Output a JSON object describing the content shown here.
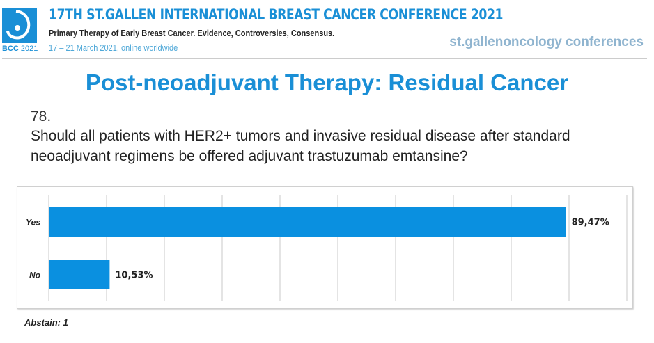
{
  "header": {
    "logo_text": "BCC",
    "logo_year": "2021",
    "conference_title": "17TH ST.GALLEN INTERNATIONAL BREAST CANCER CONFERENCE 2021",
    "subtitle": "Primary Therapy of Early Breast Cancer. Evidence, Controversies, Consensus.",
    "dates": "17 – 21 March 2021, online worldwide",
    "brand_logo": "st.gallenoncology conferences"
  },
  "slide": {
    "title": "Post-neoadjuvant Therapy: Residual Cancer",
    "question_number": "78.",
    "question": "Should all patients with HER2+ tumors and invasive residual disease after standard neoadjuvant regimens be offered adjuvant trastuzumab emtansine?",
    "abstain": "Abstain: 1"
  },
  "colors": {
    "accent": "#1a8fd6",
    "bar": "#0a90e0"
  },
  "chart_data": {
    "type": "bar",
    "orientation": "horizontal",
    "categories": [
      "Yes",
      "No"
    ],
    "values": [
      89.47,
      10.53
    ],
    "data_labels": [
      "89,47%",
      "10,53%"
    ],
    "title": "",
    "xlabel": "",
    "ylabel": "",
    "xlim": [
      0,
      100
    ],
    "grid": true,
    "legend": "none"
  }
}
